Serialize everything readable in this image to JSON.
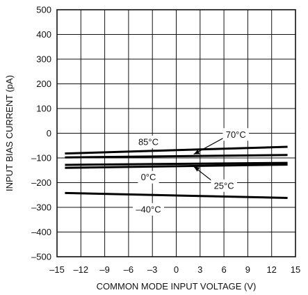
{
  "chart_data": {
    "type": "line",
    "title": "",
    "xlabel": "COMMON MODE INPUT VOLTAGE (V)",
    "ylabel": "INPUT BIAS CURRENT (pA)",
    "xlim": [
      -15,
      15
    ],
    "ylim": [
      -500,
      500
    ],
    "grid": true,
    "x_ticks": [
      -15,
      -12,
      -9,
      -6,
      -3,
      0,
      3,
      6,
      9,
      12,
      15
    ],
    "x_tick_labels": [
      "–15",
      "–12",
      "–9",
      "–6",
      "–3",
      "0",
      "3",
      "6",
      "9",
      "12",
      "15"
    ],
    "y_ticks": [
      500,
      400,
      300,
      200,
      100,
      0,
      -100,
      -200,
      -300,
      -400,
      -500
    ],
    "y_tick_labels": [
      "500",
      "400",
      "300",
      "200",
      "100",
      "0",
      "–100",
      "–200",
      "–300",
      "–400",
      "–500"
    ],
    "series": [
      {
        "name": "85°C",
        "x": [
          -14,
          14
        ],
        "y": [
          -82,
          -55
        ]
      },
      {
        "name": "70°C",
        "x": [
          -14,
          14
        ],
        "y": [
          -98,
          -88
        ]
      },
      {
        "name": "25°C",
        "x": [
          -14,
          14
        ],
        "y": [
          -128,
          -120
        ]
      },
      {
        "name": "0°C",
        "x": [
          -14,
          14
        ],
        "y": [
          -140,
          -127
        ]
      },
      {
        "name": "–40°C",
        "x": [
          -14,
          14
        ],
        "y": [
          -242,
          -262
        ]
      }
    ],
    "annotations": [
      {
        "text": "85°C",
        "x": -3.5,
        "y": -35,
        "anchor_x": -3.5,
        "anchor_y": -35
      },
      {
        "text": "70°C",
        "x": 7.5,
        "y": -5,
        "anchor_x": 2.2,
        "anchor_y": -85
      },
      {
        "text": "0°C",
        "x": -3.5,
        "y": -178,
        "anchor_x": -3.5,
        "anchor_y": -178
      },
      {
        "text": "25°C",
        "x": 6,
        "y": -212,
        "anchor_x": 2.2,
        "anchor_y": -135
      },
      {
        "text": "–40°C",
        "x": -3.5,
        "y": -308,
        "anchor_x": -3.5,
        "anchor_y": -308
      }
    ]
  }
}
